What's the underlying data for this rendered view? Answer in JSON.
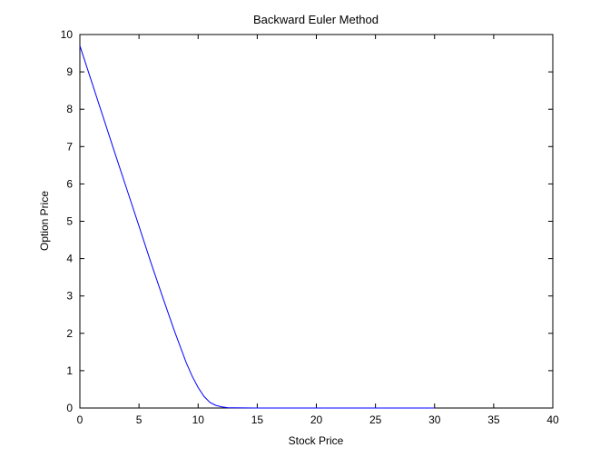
{
  "chart_data": {
    "type": "line",
    "title": "Backward Euler Method",
    "xlabel": "Stock Price",
    "ylabel": "Option Price",
    "xlim": [
      0,
      40
    ],
    "ylim": [
      0,
      10
    ],
    "xticks": [
      0,
      5,
      10,
      15,
      20,
      25,
      30,
      35,
      40
    ],
    "yticks": [
      0,
      1,
      2,
      3,
      4,
      5,
      6,
      7,
      8,
      9,
      10
    ],
    "grid": false,
    "legend": "none",
    "series": [
      {
        "color": "#0000ff",
        "x": [
          0,
          1,
          2,
          3,
          4,
          5,
          6,
          7,
          8,
          9,
          9.5,
          10,
          10.5,
          11,
          11.5,
          12,
          12.5,
          13,
          14,
          15,
          20,
          25,
          30
        ],
        "y": [
          9.7,
          8.73,
          7.76,
          6.79,
          5.83,
          4.87,
          3.9,
          2.97,
          2.06,
          1.21,
          0.85,
          0.55,
          0.31,
          0.15,
          0.07,
          0.03,
          0.01,
          0.005,
          0.002,
          0.001,
          0,
          0,
          0
        ]
      }
    ]
  }
}
